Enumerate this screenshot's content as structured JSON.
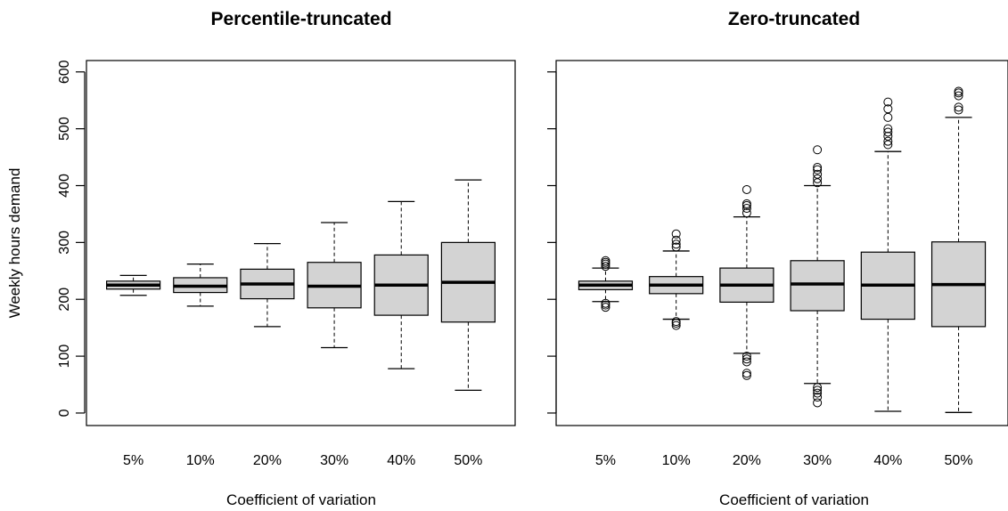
{
  "ylabel": "Weekly hours demand",
  "chart_data": [
    {
      "type": "boxplot",
      "title": "Percentile-truncated",
      "xlabel": "Coefficient of variation",
      "ylabel": "Weekly hours demand",
      "categories": [
        "5%",
        "10%",
        "20%",
        "30%",
        "40%",
        "50%"
      ],
      "ylim": [
        -22,
        620
      ],
      "yticks": [
        0,
        100,
        200,
        300,
        400,
        500,
        600
      ],
      "box_color": "#d3d3d3",
      "grid": false,
      "legend": "none",
      "boxes": [
        {
          "whisker_low": 207,
          "q1": 218,
          "median": 225,
          "q3": 232,
          "whisker_high": 242,
          "outliers": []
        },
        {
          "whisker_low": 188,
          "q1": 212,
          "median": 223,
          "q3": 238,
          "whisker_high": 262,
          "outliers": []
        },
        {
          "whisker_low": 152,
          "q1": 201,
          "median": 227,
          "q3": 253,
          "whisker_high": 298,
          "outliers": []
        },
        {
          "whisker_low": 115,
          "q1": 185,
          "median": 223,
          "q3": 265,
          "whisker_high": 335,
          "outliers": []
        },
        {
          "whisker_low": 78,
          "q1": 172,
          "median": 225,
          "q3": 278,
          "whisker_high": 372,
          "outliers": []
        },
        {
          "whisker_low": 40,
          "q1": 160,
          "median": 230,
          "q3": 300,
          "whisker_high": 410,
          "outliers": []
        }
      ]
    },
    {
      "type": "boxplot",
      "title": "Zero-truncated",
      "xlabel": "Coefficient of variation",
      "ylabel": "",
      "categories": [
        "5%",
        "10%",
        "20%",
        "30%",
        "40%",
        "50%"
      ],
      "ylim": [
        -22,
        620
      ],
      "yticks": [
        0,
        100,
        200,
        300,
        400,
        500,
        600
      ],
      "box_color": "#d3d3d3",
      "grid": false,
      "legend": "none",
      "boxes": [
        {
          "whisker_low": 196,
          "q1": 217,
          "median": 225,
          "q3": 232,
          "whisker_high": 255,
          "outliers": [
            186,
            190,
            193,
            258,
            262,
            265,
            268
          ]
        },
        {
          "whisker_low": 165,
          "q1": 210,
          "median": 225,
          "q3": 240,
          "whisker_high": 285,
          "outliers": [
            154,
            158,
            161,
            292,
            297,
            304,
            315
          ]
        },
        {
          "whisker_low": 105,
          "q1": 195,
          "median": 225,
          "q3": 255,
          "whisker_high": 345,
          "outliers": [
            66,
            70,
            90,
            95,
            100,
            352,
            360,
            365,
            368,
            393
          ]
        },
        {
          "whisker_low": 52,
          "q1": 180,
          "median": 227,
          "q3": 268,
          "whisker_high": 400,
          "outliers": [
            18,
            28,
            35,
            40,
            45,
            405,
            412,
            420,
            428,
            432,
            463
          ]
        },
        {
          "whisker_low": 3,
          "q1": 165,
          "median": 225,
          "q3": 283,
          "whisker_high": 460,
          "outliers": [
            472,
            478,
            487,
            494,
            500,
            520,
            535,
            547
          ]
        },
        {
          "whisker_low": 1,
          "q1": 152,
          "median": 226,
          "q3": 301,
          "whisker_high": 520,
          "outliers": [
            533,
            538,
            558,
            563,
            566
          ]
        }
      ]
    }
  ]
}
